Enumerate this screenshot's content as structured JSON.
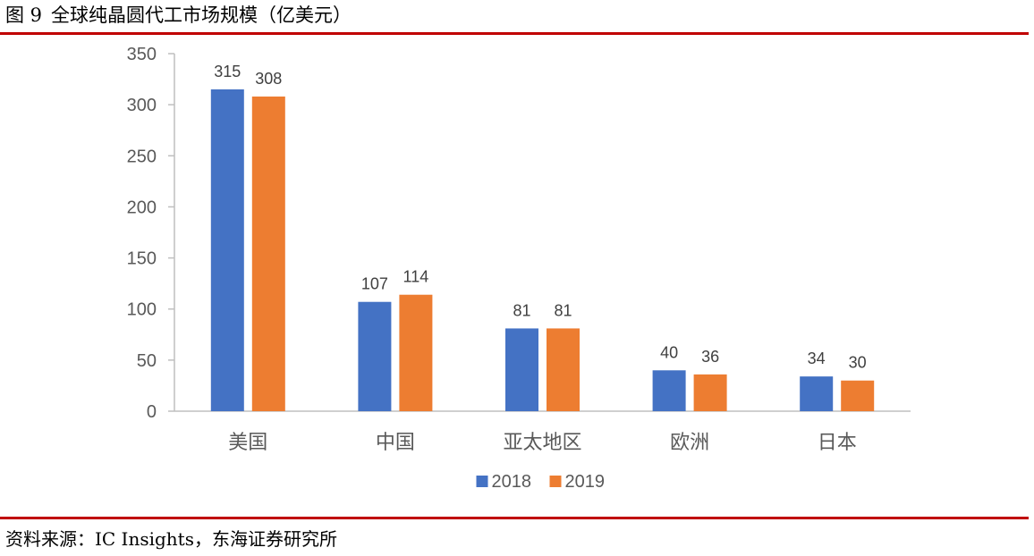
{
  "figure": {
    "label": "图 9",
    "title": "全球纯晶圆代工市场规模（亿美元）"
  },
  "source": {
    "label": "资料来源：",
    "text": "IC Insights，东海证券研究所"
  },
  "colors": {
    "rule": "#c00000",
    "series_2018": "#4472c4",
    "series_2019": "#ed7d31",
    "axis_text": "#595959",
    "axis_line": "#bfbfbf"
  },
  "chart_data": {
    "type": "bar",
    "categories": [
      "美国",
      "中国",
      "亚太地区",
      "欧洲",
      "日本"
    ],
    "series": [
      {
        "name": "2018",
        "values": [
          315,
          107,
          81,
          40,
          34
        ]
      },
      {
        "name": "2019",
        "values": [
          308,
          114,
          81,
          36,
          30
        ]
      }
    ],
    "ylim": [
      0,
      350
    ],
    "yticks": [
      0,
      50,
      100,
      150,
      200,
      250,
      300,
      350
    ],
    "xlabel": "",
    "ylabel": "",
    "grid": false,
    "legend": "bottom-center",
    "data_labels": true
  }
}
